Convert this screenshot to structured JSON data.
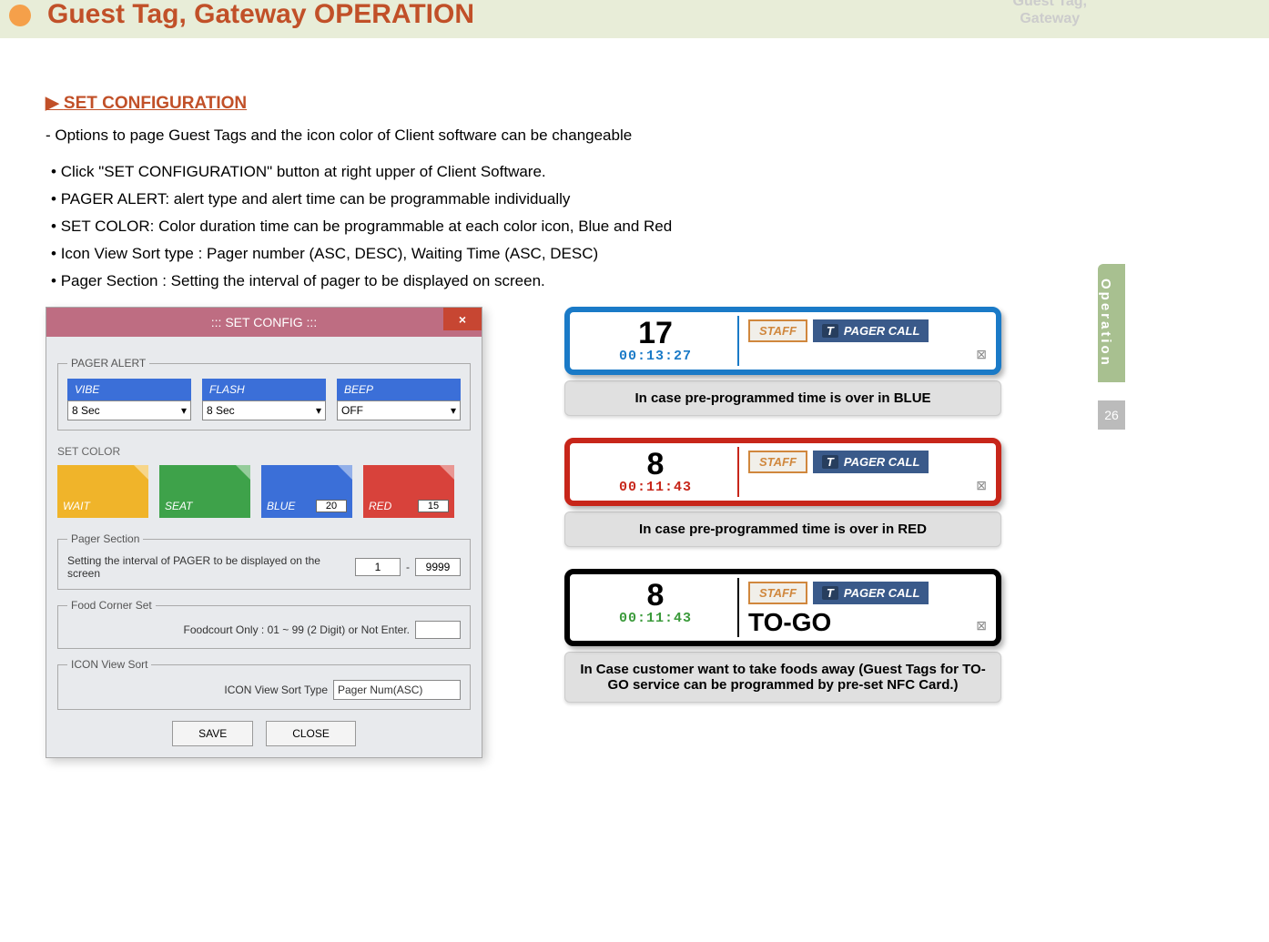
{
  "header": {
    "title": "Guest Tag, Gateway OPERATION",
    "right_line1": "Guest Tag,",
    "right_line2": "Gateway"
  },
  "side": {
    "tab": "Operation",
    "page": "26"
  },
  "section": {
    "title": "SET CONFIGURATION",
    "desc": "- Options to page Guest Tags and the icon color of Client software can be changeable",
    "bullets": [
      "Click \"SET CONFIGURATION\" button at right upper of Client Software.",
      "PAGER ALERT:  alert type and alert time can be programmable individually",
      "SET COLOR: Color duration time can be programmable at each color icon, Blue and Red",
      "Icon View Sort type : Pager number (ASC, DESC), Waiting Time (ASC, DESC)",
      "Pager Section : Setting the interval of pager to be displayed on screen."
    ]
  },
  "cfg": {
    "title": "::: SET CONFIG :::",
    "pager_alert": {
      "legend": "PAGER ALERT",
      "items": [
        {
          "label": "VIBE",
          "value": "8 Sec"
        },
        {
          "label": "FLASH",
          "value": "8 Sec"
        },
        {
          "label": "BEEP",
          "value": "OFF"
        }
      ]
    },
    "set_color": {
      "legend": "SET COLOR",
      "colors": [
        {
          "label": "WAIT",
          "bg": "#f0b42a",
          "val": ""
        },
        {
          "label": "SEAT",
          "bg": "#3ea24a",
          "val": ""
        },
        {
          "label": "BLUE",
          "bg": "#3b6fd8",
          "val": "20"
        },
        {
          "label": "RED",
          "bg": "#d8423b",
          "val": "15"
        }
      ]
    },
    "pager_section": {
      "legend": "Pager Section",
      "text": "Setting the interval of PAGER to be displayed on the screen",
      "from": "1",
      "to": "9999"
    },
    "food": {
      "legend": "Food Corner Set",
      "text": "Foodcourt Only  :  01 ~ 99 (2 Digit) or Not Enter.",
      "val": ""
    },
    "sort": {
      "legend": "ICON View Sort",
      "label": "ICON View Sort Type",
      "val": "Pager Num(ASC)"
    },
    "btn_save": "SAVE",
    "btn_close": "CLOSE"
  },
  "cards": {
    "blue": {
      "border": "#1a7ac7",
      "num": "17",
      "time": "00:13:27",
      "time_color": "#1a7ac7",
      "staff": "STAFF",
      "pcall": "PAGER CALL",
      "caption": "In case pre-programmed time is over in BLUE"
    },
    "red": {
      "border": "#c7261a",
      "num": "8",
      "time": "00:11:43",
      "time_color": "#c7261a",
      "staff": "STAFF",
      "pcall": "PAGER CALL",
      "caption": "In case pre-programmed time is over in RED"
    },
    "black": {
      "border": "#000000",
      "num": "8",
      "time": "00:11:43",
      "time_color": "#3a9a3a",
      "staff": "STAFF",
      "pcall": "PAGER CALL",
      "togo": "TO-GO",
      "caption": "In Case customer want to take foods away (Guest Tags for TO-GO service can be programmed by pre-set NFC Card.)"
    }
  }
}
